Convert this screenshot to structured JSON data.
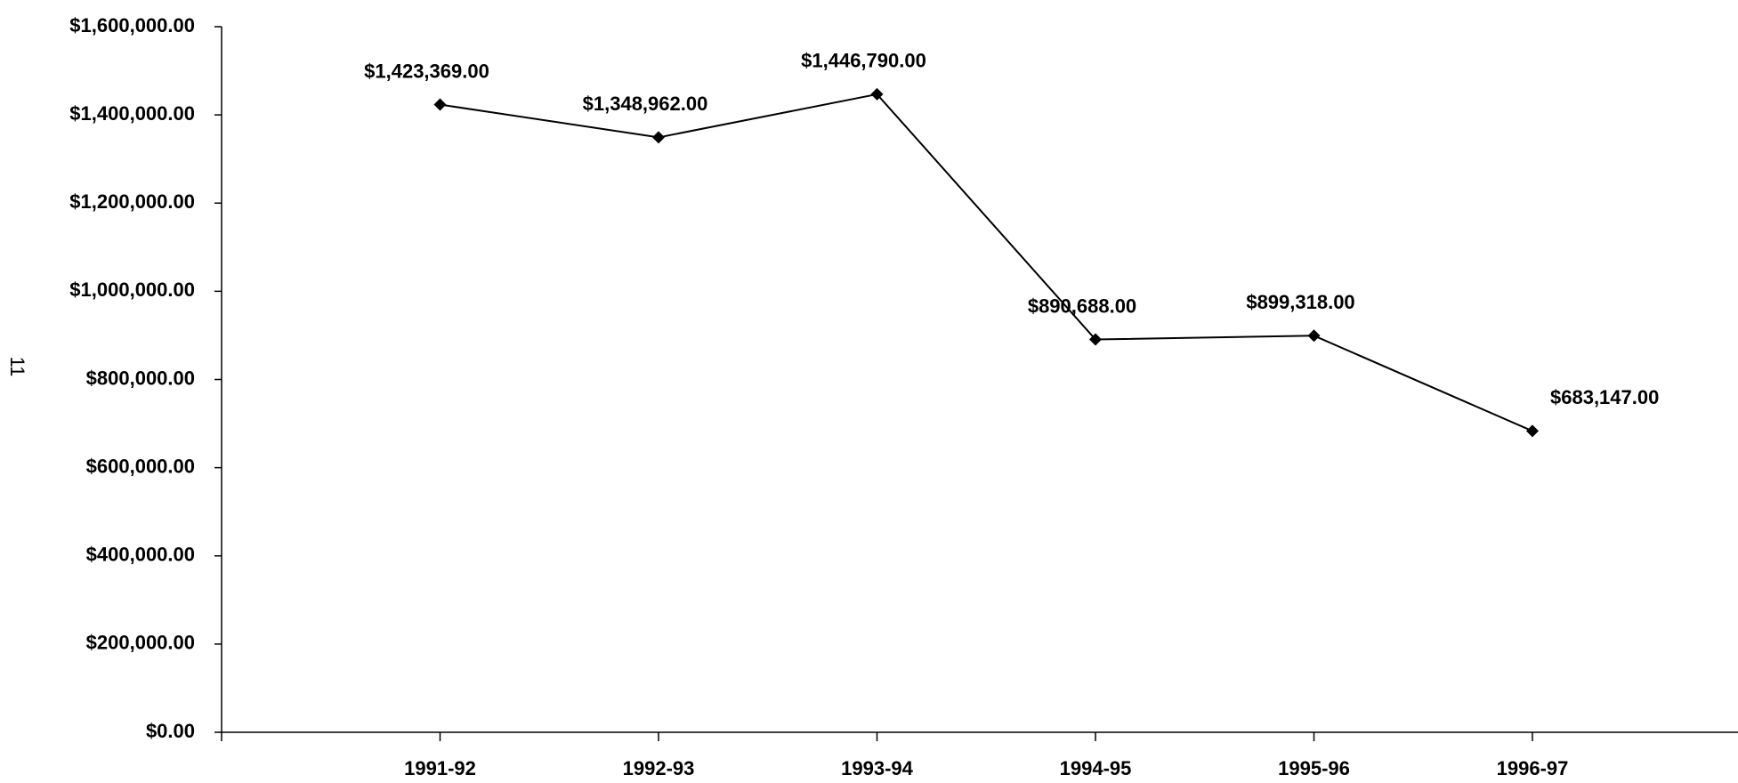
{
  "chart_data": {
    "type": "line",
    "categories": [
      "1991-92",
      "1992-93",
      "1993-94",
      "1994-95",
      "1995-96",
      "1996-97"
    ],
    "series": [
      {
        "color": "#000000",
        "values": [
          1423369,
          1348962,
          1446790,
          890688,
          899318,
          683147
        ],
        "value_labels": [
          "$1,423,369.00",
          "$1,348,962.00",
          "$1,446,790.00",
          "$890,688.00",
          "$899,318.00",
          "$683,147.00"
        ]
      }
    ],
    "ylim": [
      0,
      1600000
    ],
    "yticks": [
      {
        "value": 0,
        "label": "$0.00"
      },
      {
        "value": 200000,
        "label": "$200,000.00"
      },
      {
        "value": 400000,
        "label": "$400,000.00"
      },
      {
        "value": 600000,
        "label": "$600,000.00"
      },
      {
        "value": 800000,
        "label": "$800,000.00"
      },
      {
        "value": 1000000,
        "label": "$1,000,000.00"
      },
      {
        "value": 1200000,
        "label": "$1,200,000.00"
      },
      {
        "value": 1400000,
        "label": "$1,400,000.00"
      },
      {
        "value": 1600000,
        "label": "$1,600,000.00"
      }
    ],
    "grid": false,
    "annotations": [
      "11"
    ]
  }
}
